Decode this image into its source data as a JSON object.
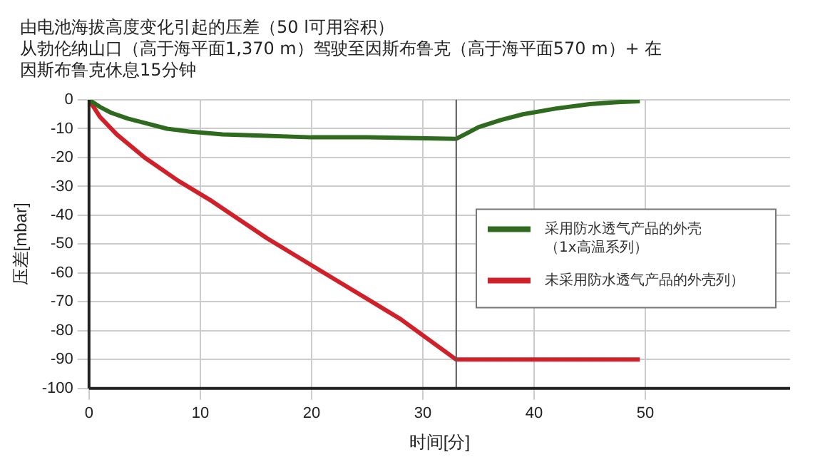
{
  "chart_data": {
    "type": "line",
    "title": "由电池海拔高度变化引起的压差（50 l可用容积）",
    "subtitle": "从勃伦纳山口（高于海平面1,370 m）驾驶至因斯布鲁克（高于海平面570 m）+ 在因斯布鲁克休息15分钟",
    "xlabel": "时间[分]",
    "ylabel": "压差[mbar]",
    "xlim": [
      0,
      63
    ],
    "xticks": [
      0,
      10,
      20,
      30,
      40,
      50
    ],
    "ylim": [
      -100,
      0
    ],
    "yticks": [
      -100,
      -90,
      -80,
      -70,
      -60,
      -50,
      -40,
      -30,
      -20,
      -10,
      0
    ],
    "grid": true,
    "legend": "right",
    "line_style": "solid",
    "marker": "none",
    "ref_lines": [
      {
        "axis": "x",
        "value": 33,
        "color": "#555555"
      }
    ],
    "series": [
      {
        "name": "采用防水透气产品的外壳（1x高温系列）",
        "color": "#2e6b1e",
        "x": [
          0,
          1,
          2,
          3.5,
          5,
          7,
          9,
          12,
          16,
          20,
          25,
          33,
          34,
          35,
          37,
          39,
          42,
          45,
          47.5,
          49.5
        ],
        "values": [
          0,
          -2.5,
          -4.5,
          -6.5,
          -8,
          -10,
          -11,
          -12,
          -12.5,
          -13,
          -13,
          -13.5,
          -11.5,
          -9.5,
          -7,
          -5,
          -3,
          -1.5,
          -0.8,
          -0.5
        ]
      },
      {
        "name": "未采用防水透气产品的外壳列）",
        "color": "#d0202a",
        "x": [
          0,
          1,
          2.5,
          5,
          8,
          11,
          16,
          22,
          28,
          33,
          49.5
        ],
        "values": [
          0,
          -6,
          -12,
          -20,
          -28,
          -35,
          -48,
          -62,
          -76,
          -90,
          -90
        ]
      }
    ]
  }
}
